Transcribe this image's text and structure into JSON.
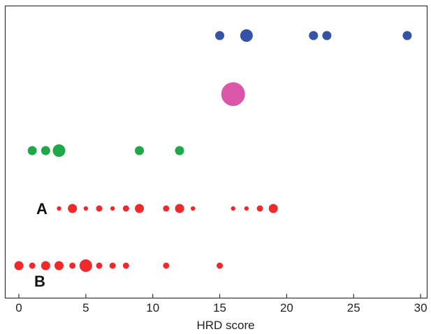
{
  "chart_data": {
    "type": "scatter",
    "xlabel": "HRD score",
    "ylabel": "",
    "xlim": [
      -1,
      30
    ],
    "xticks": [
      0,
      5,
      10,
      15,
      20,
      25,
      30
    ],
    "grid": false,
    "legend": "none",
    "sizes_legend": {
      "small": 1,
      "medium": 2,
      "large": 3,
      "xlarge": 4,
      "xxlarge": 7
    },
    "rows": [
      {
        "row": 5,
        "label": "",
        "color": "#3352a8",
        "points": [
          {
            "x": 15,
            "size": 2
          },
          {
            "x": 17,
            "size": 3
          },
          {
            "x": 22,
            "size": 2
          },
          {
            "x": 23,
            "size": 2
          },
          {
            "x": 29,
            "size": 2
          }
        ]
      },
      {
        "row": 4,
        "label": "",
        "color": "#d957a8",
        "points": [
          {
            "x": 16,
            "size": 7
          }
        ]
      },
      {
        "row": 3,
        "label": "",
        "color": "#1ea84a",
        "points": [
          {
            "x": 1,
            "size": 2
          },
          {
            "x": 2,
            "size": 2
          },
          {
            "x": 3,
            "size": 3
          },
          {
            "x": 9,
            "size": 2
          },
          {
            "x": 12,
            "size": 2
          }
        ]
      },
      {
        "row": 2,
        "label": "A",
        "color": "#f02a2a",
        "points": [
          {
            "x": 3,
            "size": 0
          },
          {
            "x": 4,
            "size": 2
          },
          {
            "x": 5,
            "size": 0
          },
          {
            "x": 6,
            "size": 1
          },
          {
            "x": 7,
            "size": 0
          },
          {
            "x": 8,
            "size": 1
          },
          {
            "x": 9,
            "size": 2
          },
          {
            "x": 11,
            "size": 1
          },
          {
            "x": 12,
            "size": 2
          },
          {
            "x": 13,
            "size": 0
          },
          {
            "x": 16,
            "size": 0
          },
          {
            "x": 17,
            "size": 0
          },
          {
            "x": 18,
            "size": 1
          },
          {
            "x": 19,
            "size": 2
          }
        ]
      },
      {
        "row": 1,
        "label": "B",
        "color": "#f02a2a",
        "points": [
          {
            "x": 0,
            "size": 2
          },
          {
            "x": 1,
            "size": 1
          },
          {
            "x": 2,
            "size": 2
          },
          {
            "x": 3,
            "size": 2
          },
          {
            "x": 4,
            "size": 1
          },
          {
            "x": 5,
            "size": 3
          },
          {
            "x": 6,
            "size": 1
          },
          {
            "x": 7,
            "size": 1
          },
          {
            "x": 8,
            "size": 1
          },
          {
            "x": 11,
            "size": 1
          },
          {
            "x": 15,
            "size": 1
          }
        ]
      }
    ]
  }
}
